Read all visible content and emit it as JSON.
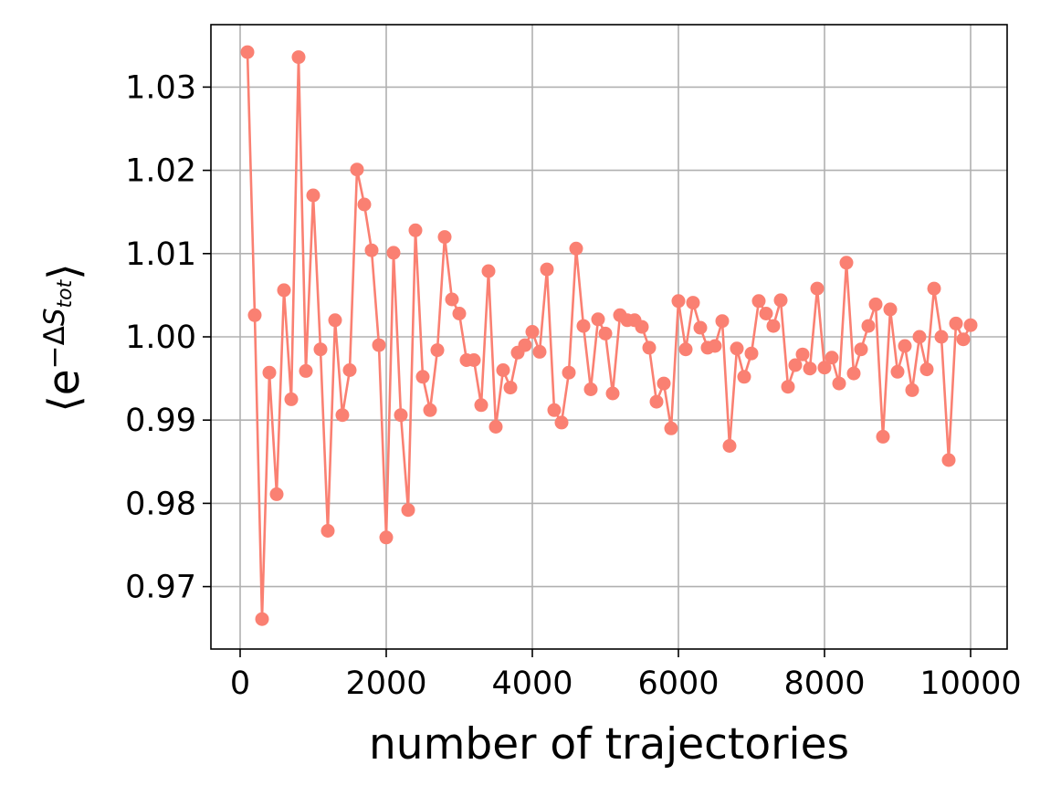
{
  "chart_data": {
    "type": "line",
    "xlabel": "number of trajectories",
    "ylabel": {
      "open": "⟨e",
      "sup_minus_delta": "−Δ",
      "sup_S": "S",
      "sub_tot": "tot",
      "close": "⟩"
    },
    "xlim": [
      -400,
      10500
    ],
    "ylim": [
      0.9625,
      1.0375
    ],
    "x_ticks": [
      0,
      2000,
      4000,
      6000,
      8000,
      10000
    ],
    "x_tick_labels": [
      "0",
      "2000",
      "4000",
      "6000",
      "8000",
      "10000"
    ],
    "y_ticks": [
      0.97,
      0.98,
      0.99,
      1.0,
      1.01,
      1.02,
      1.03
    ],
    "y_tick_labels": [
      "0.97",
      "0.98",
      "0.99",
      "1.00",
      "1.01",
      "1.02",
      "1.03"
    ],
    "grid": true,
    "marker": "circle",
    "color": "#fa8072",
    "series": [
      {
        "x": [
          100,
          200,
          300,
          400,
          500,
          600,
          700,
          800,
          900,
          1000,
          1100,
          1200,
          1300,
          1400,
          1500,
          1600,
          1700,
          1800,
          1900,
          2000,
          2100,
          2200,
          2300,
          2400,
          2500,
          2600,
          2700,
          2800,
          2900,
          3000,
          3100,
          3200,
          3300,
          3400,
          3500,
          3600,
          3700,
          3800,
          3900,
          4000,
          4100,
          4200,
          4300,
          4400,
          4500,
          4600,
          4700,
          4800,
          4900,
          5000,
          5100,
          5200,
          5300,
          5400,
          5500,
          5600,
          5700,
          5800,
          5900,
          6000,
          6100,
          6200,
          6300,
          6400,
          6500,
          6600,
          6700,
          6800,
          6900,
          7000,
          7100,
          7200,
          7300,
          7400,
          7500,
          7600,
          7700,
          7800,
          7900,
          8000,
          8100,
          8200,
          8300,
          8400,
          8500,
          8600,
          8700,
          8800,
          8900,
          9000,
          9100,
          9200,
          9300,
          9400,
          9500,
          9600,
          9700,
          9800,
          9900,
          10000
        ],
        "y": [
          1.0342,
          1.0026,
          0.9661,
          0.9957,
          0.9811,
          1.0056,
          0.9925,
          1.0336,
          0.9959,
          1.017,
          0.9985,
          0.9767,
          1.002,
          0.9906,
          0.996,
          1.0201,
          1.0159,
          1.0104,
          0.999,
          0.9759,
          1.0101,
          0.9906,
          0.9792,
          1.0128,
          0.9952,
          0.9912,
          0.9984,
          1.012,
          1.0045,
          1.0028,
          0.9972,
          0.9972,
          0.9918,
          1.0079,
          0.9892,
          0.996,
          0.9939,
          0.9981,
          0.999,
          1.0006,
          0.9982,
          1.0081,
          0.9912,
          0.9897,
          0.9957,
          1.0106,
          1.0013,
          0.9937,
          1.0021,
          1.0004,
          0.9932,
          1.0026,
          1.002,
          1.002,
          1.0012,
          0.9987,
          0.9922,
          0.9944,
          0.989,
          1.0043,
          0.9985,
          1.0041,
          1.0011,
          0.9987,
          0.9989,
          1.0019,
          0.9869,
          0.9986,
          0.9952,
          0.998,
          1.0043,
          1.0028,
          1.0013,
          1.0044,
          0.994,
          0.9966,
          0.9979,
          0.9962,
          1.0058,
          0.9963,
          0.9975,
          0.9944,
          1.0089,
          0.9956,
          0.9985,
          1.0013,
          1.0039,
          0.988,
          1.0033,
          0.9958,
          0.9989,
          0.9936,
          1.0,
          0.9961,
          1.0058,
          1.0,
          0.9852,
          1.0016,
          0.9997,
          1.0014
        ]
      }
    ]
  }
}
